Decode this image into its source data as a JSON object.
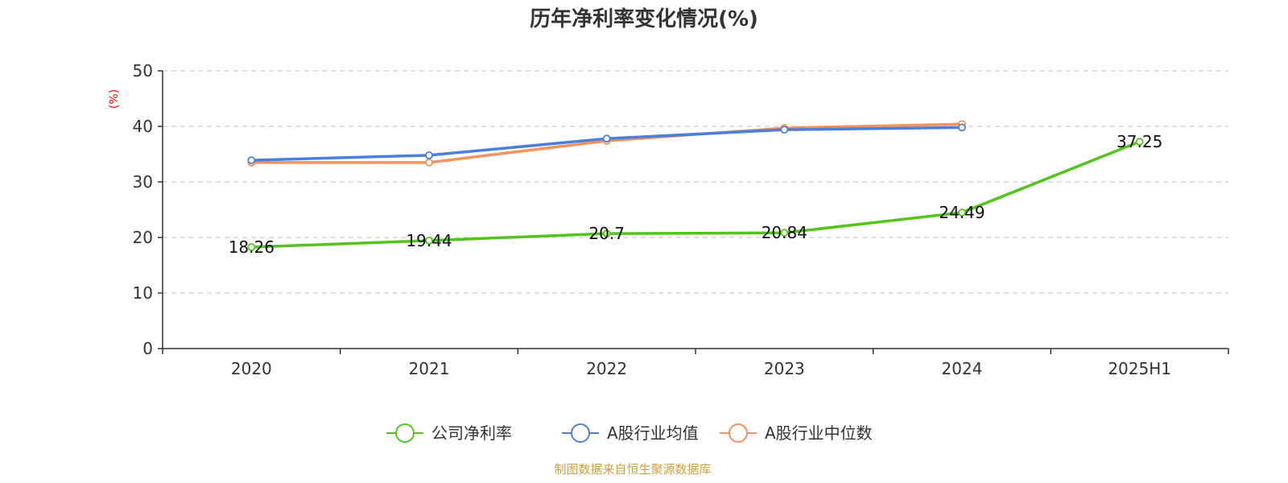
{
  "chart_data": {
    "type": "line",
    "title": "历年净利率变化情况(%)",
    "ylabel": "(%)",
    "ylim": [
      0,
      50
    ],
    "yticks": [
      0,
      10,
      20,
      30,
      40,
      50
    ],
    "grid": true,
    "legend_position": "bottom",
    "categories": [
      "2020",
      "2021",
      "2022",
      "2023",
      "2024",
      "2025H1"
    ],
    "series": [
      {
        "name": "公司净利率",
        "color": "#52c41a",
        "values": [
          18.26,
          19.44,
          20.7,
          20.84,
          24.49,
          37.25
        ],
        "show_labels": true
      },
      {
        "name": "A股行业均值",
        "color": "#4a7fdd",
        "values": [
          33.9,
          34.8,
          37.8,
          39.4,
          39.8,
          null
        ],
        "show_labels": false
      },
      {
        "name": "A股行业中位数",
        "color": "#f5915a",
        "values": [
          33.5,
          33.5,
          37.4,
          39.7,
          40.4,
          null
        ],
        "show_labels": false
      }
    ],
    "ylabel_color": "#ff0000"
  },
  "source_text": "制图数据来自恒生聚源数据库",
  "source_color": "#c8a040"
}
